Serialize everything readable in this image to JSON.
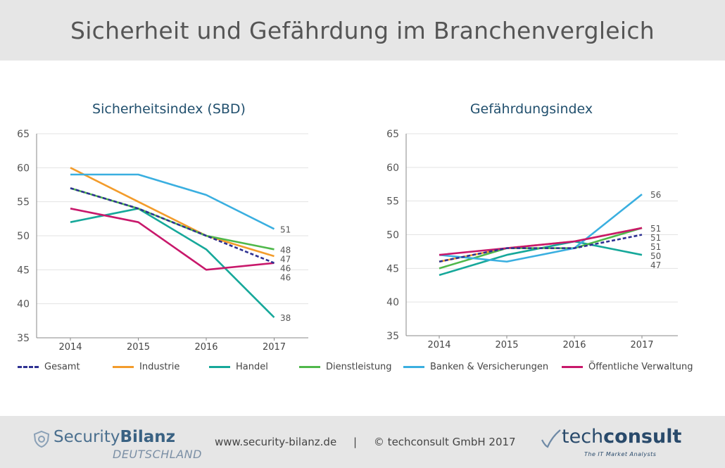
{
  "header": {
    "title": "Sicherheit und Gefährdung im Branchenvergleich"
  },
  "colors": {
    "Gesamt": "#2e3192",
    "Industrie": "#f39c2b",
    "Handel": "#16a89a",
    "Dienstleistung": "#4fb84a",
    "Banken & Versicherungen": "#3aafe0",
    "Öffentliche Verwaltung": "#c8186b"
  },
  "chart_data": [
    {
      "type": "line",
      "title": "Sicherheitsindex (SBD)",
      "categories": [
        "2014",
        "2015",
        "2016",
        "2017"
      ],
      "ylim": [
        35,
        65
      ],
      "yticks": [
        "35",
        "40",
        "45",
        "50",
        "55",
        "60",
        "65"
      ],
      "series": [
        {
          "name": "Gesamt",
          "values": [
            57,
            54,
            50,
            46
          ],
          "dashed": true
        },
        {
          "name": "Industrie",
          "values": [
            60,
            55,
            50,
            47
          ]
        },
        {
          "name": "Handel",
          "values": [
            52,
            54,
            48,
            38
          ]
        },
        {
          "name": "Dienstleistung",
          "values": [
            57,
            54,
            50,
            48
          ]
        },
        {
          "name": "Banken & Versicherungen",
          "values": [
            59,
            59,
            56,
            51
          ]
        },
        {
          "name": "Öffentliche Verwaltung",
          "values": [
            54,
            52,
            45,
            46
          ]
        }
      ],
      "end_labels": [
        "51",
        "48",
        "47",
        "46",
        "46",
        "38"
      ]
    },
    {
      "type": "line",
      "title": "Gefährdungsindex",
      "categories": [
        "2014",
        "2015",
        "2016",
        "2017"
      ],
      "ylim": [
        35,
        65
      ],
      "yticks": [
        "35",
        "40",
        "45",
        "50",
        "55",
        "60",
        "65"
      ],
      "series": [
        {
          "name": "Gesamt",
          "values": [
            46,
            48,
            48,
            50
          ],
          "dashed": true
        },
        {
          "name": "Industrie",
          "values": [
            46,
            48,
            49,
            51
          ]
        },
        {
          "name": "Handel",
          "values": [
            44,
            47,
            49,
            47
          ]
        },
        {
          "name": "Dienstleistung",
          "values": [
            45,
            48,
            48,
            51
          ]
        },
        {
          "name": "Banken & Versicherungen",
          "values": [
            47,
            46,
            48,
            56
          ]
        },
        {
          "name": "Öffentliche Verwaltung",
          "values": [
            47,
            48,
            49,
            51
          ]
        }
      ],
      "end_labels": [
        "56",
        "51",
        "51",
        "51",
        "50",
        "47"
      ]
    }
  ],
  "legend": [
    "Gesamt",
    "Industrie",
    "Handel",
    "Dienstleistung",
    "Banken & Versicherungen",
    "Öffentliche Verwaltung"
  ],
  "footer": {
    "logo_left_main": "Security",
    "logo_left_bold": "Bilanz",
    "logo_left_sub": "DEUTSCHLAND",
    "text": "www.security-bilanz.de     |     © techconsult GmbH 2017",
    "logo_right_main": "tech",
    "logo_right_bold": "consult",
    "logo_right_tag": "The IT Market Analysts"
  }
}
